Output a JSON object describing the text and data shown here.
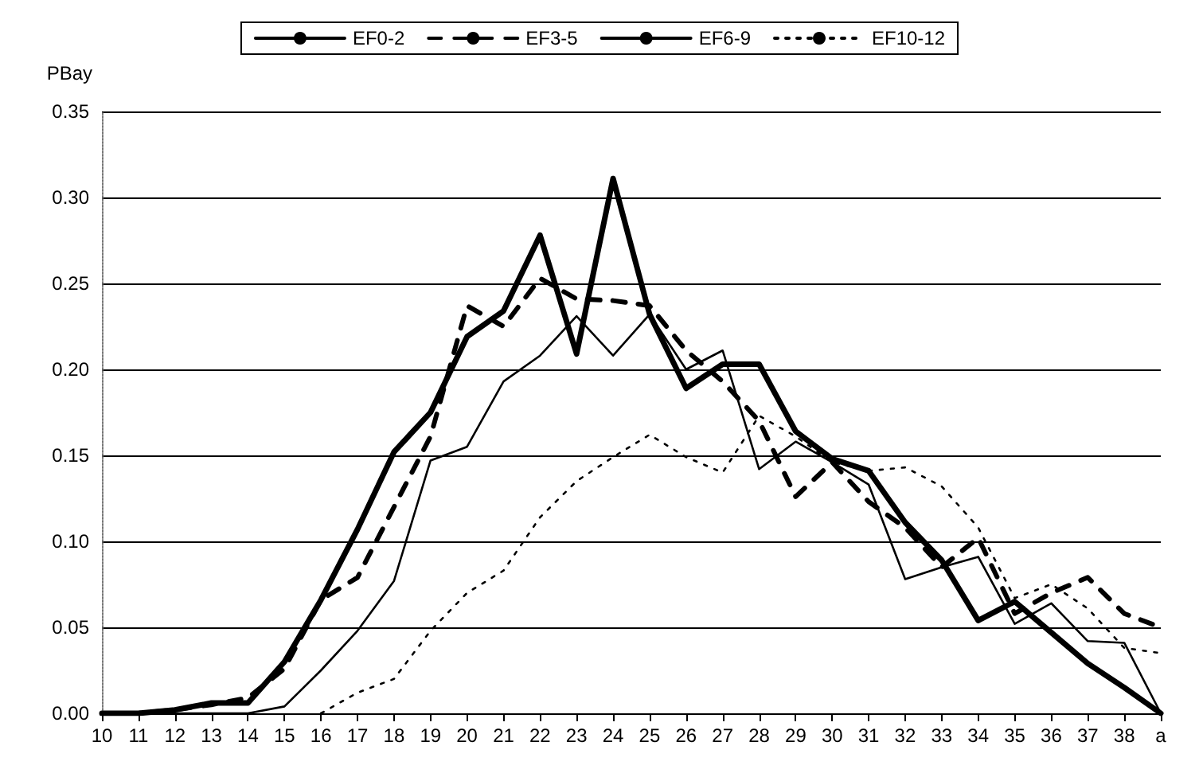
{
  "chart_data": {
    "type": "line",
    "ylabel": "PBay",
    "categories": [
      "10",
      "11",
      "12",
      "13",
      "14",
      "15",
      "16",
      "17",
      "18",
      "19",
      "20",
      "21",
      "22",
      "23",
      "24",
      "25",
      "26",
      "27",
      "28",
      "29",
      "30",
      "31",
      "32",
      "33",
      "34",
      "35",
      "36",
      "37",
      "38",
      "a"
    ],
    "series": [
      {
        "name": "EF0-2",
        "color": "#000000",
        "line_style": "solid",
        "values": [
          0,
          0,
          0.002,
          0.006,
          0.006,
          0.03,
          0.066,
          0.107,
          0.152,
          0.175,
          0.219,
          0.234,
          0.278,
          0.209,
          0.311,
          0.232,
          0.189,
          0.203,
          0.203,
          0.164,
          0.148,
          0.141,
          0.111,
          0.089,
          0.054,
          0.065,
          0.047,
          0.029,
          0.015,
          0
        ]
      },
      {
        "name": "EF3-5",
        "color": "#000000",
        "line_style": "dashed",
        "values": [
          0,
          0,
          0.002,
          0.005,
          0.009,
          0.026,
          0.066,
          0.079,
          0.12,
          0.161,
          0.237,
          0.225,
          0.253,
          0.241,
          0.24,
          0.237,
          0.211,
          0.193,
          0.17,
          0.126,
          0.146,
          0.123,
          0.108,
          0.085,
          0.102,
          0.058,
          0.07,
          0.079,
          0.058,
          0.05
        ]
      },
      {
        "name": "EF6-9",
        "color": "#000000",
        "line_style": "solid",
        "values": [
          0,
          0,
          0,
          0,
          0,
          0.004,
          0.025,
          0.048,
          0.077,
          0.147,
          0.155,
          0.193,
          0.208,
          0.231,
          0.208,
          0.232,
          0.2,
          0.211,
          0.142,
          0.158,
          0.146,
          0.133,
          0.078,
          0.085,
          0.091,
          0.052,
          0.064,
          0.042,
          0.041,
          0
        ]
      },
      {
        "name": "EF10-12",
        "color": "#000000",
        "line_style": "dotted",
        "values": [
          null,
          null,
          null,
          null,
          null,
          null,
          0,
          0.012,
          0.02,
          0.048,
          0.07,
          0.083,
          0.114,
          0.135,
          0.149,
          0.162,
          0.149,
          0.14,
          0.173,
          0.161,
          0.146,
          0.141,
          0.143,
          0.132,
          0.108,
          0.067,
          0.075,
          0.061,
          0.038,
          0.035
        ]
      }
    ],
    "ylim": [
      0,
      0.35
    ],
    "yticks": [
      {
        "value": 0,
        "label": "0.00"
      },
      0.05,
      {
        "value": 0.1,
        "label": "0.10"
      },
      0.15,
      {
        "value": 0.2,
        "label": "0.20"
      },
      0.25,
      {
        "value": 0.3,
        "label": "0.30"
      },
      0.35
    ],
    "grid": "y",
    "legend": "top",
    "marker": "none"
  }
}
